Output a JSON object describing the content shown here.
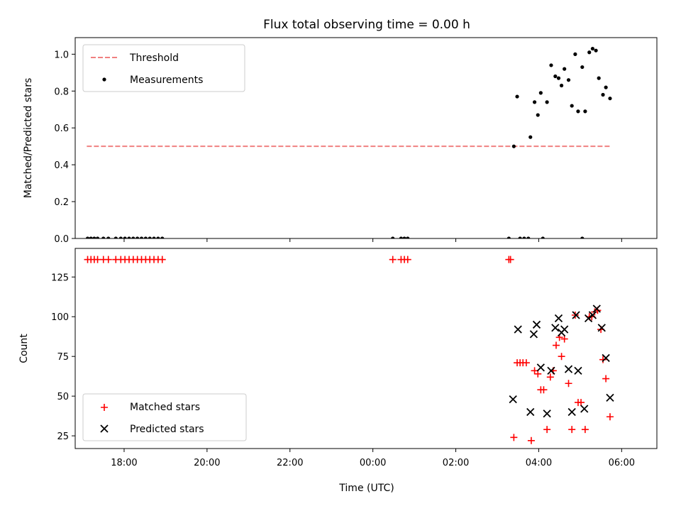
{
  "chart_data": {
    "title": "Flux total observing time = 0.00 h",
    "xlabel": "Time (UTC)",
    "x_unit": "hours since 00:00 UTC (negative = previous day)",
    "xlim": [
      -7.18,
      6.85
    ],
    "x_ticks": [
      {
        "value": -6,
        "label": "18:00"
      },
      {
        "value": -4,
        "label": "20:00"
      },
      {
        "value": -2,
        "label": "22:00"
      },
      {
        "value": 0,
        "label": "00:00"
      },
      {
        "value": 2,
        "label": "02:00"
      },
      {
        "value": 4,
        "label": "04:00"
      },
      {
        "value": 6,
        "label": "06:00"
      }
    ],
    "panels": [
      {
        "type": "scatter",
        "ylabel": "Matched/Predicted stars",
        "ylim": [
          0,
          1.09
        ],
        "y_ticks": [
          {
            "value": 0.0,
            "label": "0.0"
          },
          {
            "value": 0.2,
            "label": "0.2"
          },
          {
            "value": 0.4,
            "label": "0.4"
          },
          {
            "value": 0.6,
            "label": "0.6"
          },
          {
            "value": 0.8,
            "label": "0.8"
          },
          {
            "value": 1.0,
            "label": "1.0"
          }
        ],
        "legend": {
          "placement": "upper-left",
          "entries": [
            "Threshold",
            "Measurements"
          ]
        },
        "threshold": {
          "name": "Threshold",
          "color": "#f08080",
          "style": "dashed",
          "x": [
            -6.9,
            5.75
          ],
          "y": 0.5
        },
        "series": [
          {
            "name": "Measurements",
            "color": "#000000",
            "marker": "dot",
            "points": [
              [
                -6.88,
                0
              ],
              [
                -6.8,
                0
              ],
              [
                -6.72,
                0
              ],
              [
                -6.64,
                0
              ],
              [
                -6.5,
                0
              ],
              [
                -6.38,
                0
              ],
              [
                -6.2,
                0
              ],
              [
                -6.08,
                0
              ],
              [
                -5.98,
                0
              ],
              [
                -5.88,
                0
              ],
              [
                -5.78,
                0
              ],
              [
                -5.68,
                0
              ],
              [
                -5.58,
                0
              ],
              [
                -5.48,
                0
              ],
              [
                -5.38,
                0
              ],
              [
                -5.28,
                0
              ],
              [
                -5.18,
                0
              ],
              [
                -5.08,
                0
              ],
              [
                0.48,
                0
              ],
              [
                0.68,
                0
              ],
              [
                0.76,
                0
              ],
              [
                0.84,
                0
              ],
              [
                3.28,
                0
              ],
              [
                3.55,
                0
              ],
              [
                3.65,
                0
              ],
              [
                3.75,
                0
              ],
              [
                4.1,
                0
              ],
              [
                5.05,
                0
              ],
              [
                3.4,
                0.5
              ],
              [
                3.48,
                0.77
              ],
              [
                3.8,
                0.55
              ],
              [
                3.9,
                0.74
              ],
              [
                3.98,
                0.67
              ],
              [
                4.05,
                0.79
              ],
              [
                4.2,
                0.74
              ],
              [
                4.3,
                0.94
              ],
              [
                4.4,
                0.88
              ],
              [
                4.48,
                0.87
              ],
              [
                4.55,
                0.83
              ],
              [
                4.62,
                0.92
              ],
              [
                4.72,
                0.86
              ],
              [
                4.8,
                0.72
              ],
              [
                4.88,
                1.0
              ],
              [
                4.95,
                0.69
              ],
              [
                5.05,
                0.93
              ],
              [
                5.12,
                0.69
              ],
              [
                5.22,
                1.01
              ],
              [
                5.3,
                1.03
              ],
              [
                5.38,
                1.02
              ],
              [
                5.45,
                0.87
              ],
              [
                5.55,
                0.78
              ],
              [
                5.62,
                0.82
              ],
              [
                5.72,
                0.76
              ]
            ]
          }
        ]
      },
      {
        "type": "scatter",
        "ylabel": "Count",
        "ylim": [
          17,
          143
        ],
        "y_ticks": [
          {
            "value": 25,
            "label": "25"
          },
          {
            "value": 50,
            "label": "50"
          },
          {
            "value": 75,
            "label": "75"
          },
          {
            "value": 100,
            "label": "100"
          },
          {
            "value": 125,
            "label": "125"
          }
        ],
        "legend": {
          "placement": "lower-left",
          "entries": [
            "Matched stars",
            "Predicted stars"
          ]
        },
        "series": [
          {
            "name": "Matched stars",
            "color": "#ff0000",
            "marker": "plus",
            "points": [
              [
                -6.88,
                136
              ],
              [
                -6.8,
                136
              ],
              [
                -6.72,
                136
              ],
              [
                -6.64,
                136
              ],
              [
                -6.5,
                136
              ],
              [
                -6.38,
                136
              ],
              [
                -6.2,
                136
              ],
              [
                -6.08,
                136
              ],
              [
                -5.98,
                136
              ],
              [
                -5.88,
                136
              ],
              [
                -5.78,
                136
              ],
              [
                -5.68,
                136
              ],
              [
                -5.58,
                136
              ],
              [
                -5.48,
                136
              ],
              [
                -5.38,
                136
              ],
              [
                -5.28,
                136
              ],
              [
                -5.18,
                136
              ],
              [
                -5.08,
                136
              ],
              [
                0.48,
                136
              ],
              [
                0.68,
                136
              ],
              [
                0.76,
                136
              ],
              [
                0.84,
                136
              ],
              [
                3.28,
                136
              ],
              [
                3.32,
                136
              ],
              [
                3.4,
                24
              ],
              [
                3.48,
                71
              ],
              [
                3.55,
                71
              ],
              [
                3.62,
                71
              ],
              [
                3.7,
                71
              ],
              [
                3.82,
                22
              ],
              [
                3.9,
                66
              ],
              [
                3.98,
                64
              ],
              [
                4.05,
                54
              ],
              [
                4.12,
                54
              ],
              [
                4.2,
                29
              ],
              [
                4.28,
                62
              ],
              [
                4.35,
                66
              ],
              [
                4.42,
                82
              ],
              [
                4.5,
                87
              ],
              [
                4.55,
                75
              ],
              [
                4.62,
                86
              ],
              [
                4.72,
                58
              ],
              [
                4.8,
                29
              ],
              [
                4.88,
                101
              ],
              [
                4.95,
                46
              ],
              [
                5.02,
                46
              ],
              [
                5.12,
                29
              ],
              [
                5.22,
                100
              ],
              [
                5.28,
                100
              ],
              [
                5.35,
                103
              ],
              [
                5.42,
                104
              ],
              [
                5.5,
                92
              ],
              [
                5.55,
                73
              ],
              [
                5.62,
                61
              ],
              [
                5.72,
                37
              ]
            ]
          },
          {
            "name": "Predicted stars",
            "color": "#000000",
            "marker": "x",
            "points": [
              [
                3.38,
                48
              ],
              [
                3.5,
                92
              ],
              [
                3.8,
                40
              ],
              [
                3.88,
                89
              ],
              [
                3.95,
                95
              ],
              [
                4.05,
                68
              ],
              [
                4.2,
                39
              ],
              [
                4.3,
                66
              ],
              [
                4.4,
                93
              ],
              [
                4.48,
                99
              ],
              [
                4.55,
                90
              ],
              [
                4.62,
                92
              ],
              [
                4.72,
                67
              ],
              [
                4.8,
                40
              ],
              [
                4.9,
                101
              ],
              [
                4.95,
                66
              ],
              [
                5.1,
                42
              ],
              [
                5.2,
                99
              ],
              [
                5.3,
                101
              ],
              [
                5.4,
                105
              ],
              [
                5.52,
                93
              ],
              [
                5.62,
                74
              ],
              [
                5.72,
                49
              ]
            ]
          }
        ]
      }
    ]
  }
}
